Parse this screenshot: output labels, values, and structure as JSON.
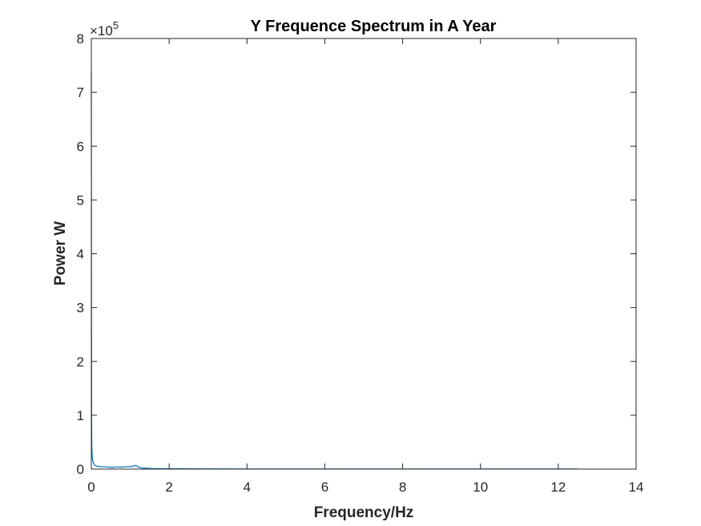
{
  "chart_data": {
    "type": "line",
    "title": "Y Frequence Spectrum in A Year",
    "xlabel": "Frequency/Hz",
    "ylabel": "Power W",
    "y_exponent_label": "×10",
    "y_exponent_power": "5",
    "xlim": [
      0,
      14
    ],
    "ylim": [
      0,
      8
    ],
    "x_ticks": [
      "0",
      "2",
      "4",
      "6",
      "8",
      "10",
      "12",
      "14"
    ],
    "y_ticks": [
      "0",
      "1",
      "2",
      "3",
      "4",
      "5",
      "6",
      "7",
      "8"
    ],
    "grid": false,
    "line_color": "#0072BD",
    "series": [
      {
        "x": [
          0,
          0.004,
          0.008,
          0.012,
          0.02,
          0.03,
          0.05,
          0.08,
          0.12,
          0.18,
          0.25,
          0.35,
          0.45,
          0.55,
          0.65,
          0.75,
          0.85,
          0.95,
          1.05,
          1.15,
          1.2,
          1.3,
          1.6,
          2.0,
          3,
          4,
          5,
          6,
          7,
          8,
          9,
          10,
          11,
          12,
          12.5
        ],
        "y": [
          7.4,
          3.2,
          1.0,
          0.45,
          0.28,
          0.18,
          0.12,
          0.08,
          0.06,
          0.05,
          0.045,
          0.04,
          0.035,
          0.03,
          0.04,
          0.035,
          0.04,
          0.045,
          0.05,
          0.07,
          0.04,
          0.02,
          0.01,
          0.006,
          0.004,
          0.003,
          0.003,
          0.002,
          0.002,
          0.002,
          0.002,
          0.002,
          0.002,
          0.002,
          0.002
        ]
      }
    ]
  }
}
